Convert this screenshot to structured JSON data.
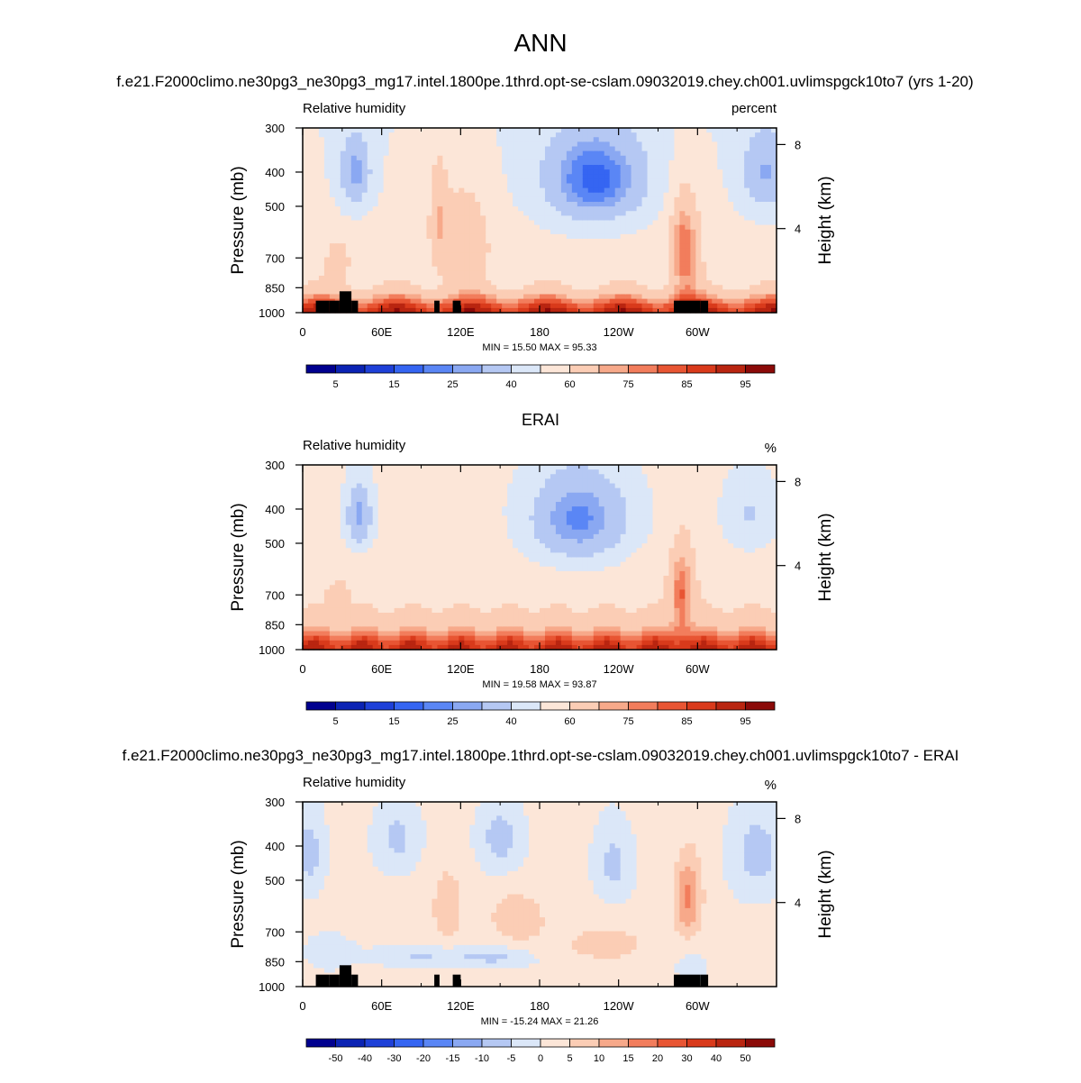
{
  "page": {
    "title": "ANN",
    "test_case": "f.e21.F2000climo.ne30pg3_ne30pg3_mg17.intel.1800pe.1thrd.opt-se-cslam.09032019.chey.ch001.uvlimspgck10to7 (yrs 1-20)",
    "ref_case": "ERAI",
    "diff_case": "f.e21.F2000climo.ne30pg3_ne30pg3_mg17.intel.1800pe.1thrd.opt-se-cslam.09032019.chey.ch001.uvlimspgck10to7 - ERAI"
  },
  "colors": {
    "rh_scale": [
      "#00008f",
      "#0b23b4",
      "#1e40d8",
      "#3565f2",
      "#5a86f5",
      "#8aa8f2",
      "#b5c8f3",
      "#dbe7f8",
      "#fce6d8",
      "#fbcdb5",
      "#f7a98a",
      "#f27d5c",
      "#e85533",
      "#d93a1b",
      "#b92510",
      "#8b0a08"
    ],
    "diff_scale": [
      "#00008f",
      "#0b23b4",
      "#1e40d8",
      "#3565f2",
      "#5a86f5",
      "#8aa8f2",
      "#b5c8f3",
      "#dbe7f8",
      "#fce6d8",
      "#fbcdb5",
      "#f7a98a",
      "#f27d5c",
      "#e85533",
      "#d93a1b",
      "#b92510",
      "#8b0a08"
    ],
    "topography": "#000000"
  },
  "chart_data": [
    {
      "type": "heatmap",
      "subtitle": "",
      "left_label": "Relative humidity",
      "right_label": "percent",
      "ylabel": "Pressure (mb)",
      "ylabel_right": "Height (km)",
      "x_ticks": [
        "0",
        "60E",
        "120E",
        "180",
        "120W",
        "60W"
      ],
      "y_ticks": [
        "300",
        "400",
        "500",
        "700",
        "850",
        "1000"
      ],
      "y_values": [
        300,
        400,
        500,
        700,
        850,
        1000
      ],
      "height_ticks": [
        "8",
        "4"
      ],
      "height_values": [
        8,
        4
      ],
      "ylim": [
        300,
        1000
      ],
      "xlim": [
        0,
        360
      ],
      "y_scale": "log",
      "stats": "MIN =  15.50  MAX =  95.33",
      "min": 15.5,
      "max": 95.33,
      "colorbar_labels": [
        "5",
        "15",
        "25",
        "40",
        "60",
        "75",
        "85",
        "95"
      ],
      "levels": [
        0,
        5,
        10,
        15,
        20,
        25,
        30,
        40,
        50,
        60,
        70,
        75,
        80,
        85,
        90,
        95,
        100
      ],
      "kind": "model",
      "topography": true
    },
    {
      "type": "heatmap",
      "subtitle": "ERAI",
      "left_label": "Relative humidity",
      "right_label": "%",
      "ylabel": "Pressure (mb)",
      "ylabel_right": "Height (km)",
      "x_ticks": [
        "0",
        "60E",
        "120E",
        "180",
        "120W",
        "60W"
      ],
      "y_ticks": [
        "300",
        "400",
        "500",
        "700",
        "850",
        "1000"
      ],
      "y_values": [
        300,
        400,
        500,
        700,
        850,
        1000
      ],
      "height_ticks": [
        "8",
        "4"
      ],
      "height_values": [
        8,
        4
      ],
      "ylim": [
        300,
        1000
      ],
      "xlim": [
        0,
        360
      ],
      "y_scale": "log",
      "stats": "MIN =  19.58  MAX =  93.87",
      "min": 19.58,
      "max": 93.87,
      "colorbar_labels": [
        "5",
        "15",
        "25",
        "40",
        "60",
        "75",
        "85",
        "95"
      ],
      "levels": [
        0,
        5,
        10,
        15,
        20,
        25,
        30,
        40,
        50,
        60,
        70,
        75,
        80,
        85,
        90,
        95,
        100
      ],
      "kind": "obs",
      "topography": false
    },
    {
      "type": "heatmap",
      "subtitle": "f.e21.F2000climo.ne30pg3_ne30pg3_mg17.intel.1800pe.1thrd.opt-se-cslam.09032019.chey.ch001.uvlimspgck10to7 - ERAI",
      "left_label": "Relative humidity",
      "right_label": "%",
      "ylabel": "Pressure (mb)",
      "ylabel_right": "Height (km)",
      "x_ticks": [
        "0",
        "60E",
        "120E",
        "180",
        "120W",
        "60W"
      ],
      "y_ticks": [
        "300",
        "400",
        "500",
        "700",
        "850",
        "1000"
      ],
      "y_values": [
        300,
        400,
        500,
        700,
        850,
        1000
      ],
      "height_ticks": [
        "8",
        "4"
      ],
      "height_values": [
        8,
        4
      ],
      "ylim": [
        300,
        1000
      ],
      "xlim": [
        0,
        360
      ],
      "y_scale": "log",
      "stats": "MIN = -15.24  MAX =  21.26",
      "min": -15.24,
      "max": 21.26,
      "colorbar_labels": [
        "-50",
        "-40",
        "-30",
        "-20",
        "-15",
        "-10",
        "-5",
        "0",
        "5",
        "10",
        "15",
        "20",
        "30",
        "40",
        "50"
      ],
      "levels": [
        -60,
        -50,
        -40,
        -30,
        -20,
        -15,
        -10,
        -5,
        0,
        5,
        10,
        15,
        20,
        30,
        40,
        50,
        60
      ],
      "kind": "diff",
      "topography": true
    }
  ]
}
